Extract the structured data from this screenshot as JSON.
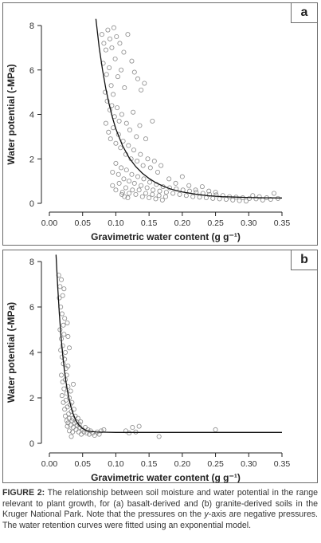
{
  "caption": {
    "label": "FIGURE 2:",
    "text_1": " The relationship between soil moisture and water potential in the range relevant to plant growth, for (a) basalt-derived and (b) granite-derived soils in the Kruger National Park. Note that the pressures on the ",
    "italic": "y",
    "text_2": "-axis are negative pressures. The water retention curves were fitted using an exponential model."
  },
  "chart_data": [
    {
      "panel": "a",
      "type": "scatter",
      "xlabel": "Gravimetric water content (g g⁻¹)",
      "ylabel": "Water potential (-MPa)",
      "xlim": [
        0.0,
        0.35
      ],
      "ylim": [
        0,
        8
      ],
      "xticks": [
        "0.00",
        "0.05",
        "0.10",
        "0.15",
        "0.20",
        "0.25",
        "0.30",
        "0.35"
      ],
      "yticks": [
        "0",
        "2",
        "4",
        "6",
        "8"
      ],
      "grid": false,
      "curve": [
        [
          0.07,
          8.3
        ],
        [
          0.075,
          7.0
        ],
        [
          0.08,
          6.0
        ],
        [
          0.085,
          5.15
        ],
        [
          0.09,
          4.45
        ],
        [
          0.095,
          3.85
        ],
        [
          0.1,
          3.35
        ],
        [
          0.11,
          2.6
        ],
        [
          0.12,
          2.05
        ],
        [
          0.13,
          1.65
        ],
        [
          0.14,
          1.35
        ],
        [
          0.15,
          1.12
        ],
        [
          0.16,
          0.93
        ],
        [
          0.17,
          0.79
        ],
        [
          0.18,
          0.67
        ],
        [
          0.19,
          0.58
        ],
        [
          0.2,
          0.51
        ],
        [
          0.22,
          0.41
        ],
        [
          0.24,
          0.34
        ],
        [
          0.26,
          0.3
        ],
        [
          0.28,
          0.28
        ],
        [
          0.3,
          0.26
        ],
        [
          0.32,
          0.25
        ],
        [
          0.35,
          0.24
        ]
      ],
      "points": [
        [
          0.079,
          7.6
        ],
        [
          0.082,
          7.2
        ],
        [
          0.085,
          6.9
        ],
        [
          0.088,
          7.8
        ],
        [
          0.091,
          7.4
        ],
        [
          0.094,
          7.0
        ],
        [
          0.097,
          7.9
        ],
        [
          0.101,
          7.5
        ],
        [
          0.106,
          7.2
        ],
        [
          0.112,
          6.8
        ],
        [
          0.118,
          7.6
        ],
        [
          0.124,
          6.4
        ],
        [
          0.128,
          5.9
        ],
        [
          0.133,
          5.6
        ],
        [
          0.138,
          5.1
        ],
        [
          0.143,
          5.4
        ],
        [
          0.081,
          6.3
        ],
        [
          0.086,
          5.8
        ],
        [
          0.09,
          6.1
        ],
        [
          0.093,
          5.3
        ],
        [
          0.096,
          4.9
        ],
        [
          0.099,
          6.5
        ],
        [
          0.103,
          5.7
        ],
        [
          0.108,
          6.0
        ],
        [
          0.113,
          5.2
        ],
        [
          0.084,
          5.0
        ],
        [
          0.087,
          4.6
        ],
        [
          0.091,
          4.2
        ],
        [
          0.094,
          4.4
        ],
        [
          0.098,
          3.9
        ],
        [
          0.102,
          4.3
        ],
        [
          0.105,
          3.7
        ],
        [
          0.109,
          4.0
        ],
        [
          0.116,
          3.6
        ],
        [
          0.121,
          3.3
        ],
        [
          0.126,
          4.1
        ],
        [
          0.131,
          3.0
        ],
        [
          0.136,
          3.5
        ],
        [
          0.155,
          3.7
        ],
        [
          0.145,
          2.9
        ],
        [
          0.085,
          3.6
        ],
        [
          0.089,
          3.2
        ],
        [
          0.092,
          2.9
        ],
        [
          0.096,
          3.4
        ],
        [
          0.1,
          2.7
        ],
        [
          0.104,
          3.1
        ],
        [
          0.107,
          2.5
        ],
        [
          0.111,
          2.8
        ],
        [
          0.115,
          2.2
        ],
        [
          0.119,
          2.6
        ],
        [
          0.123,
          2.0
        ],
        [
          0.127,
          2.4
        ],
        [
          0.132,
          1.9
        ],
        [
          0.137,
          2.2
        ],
        [
          0.141,
          1.7
        ],
        [
          0.148,
          2.0
        ],
        [
          0.152,
          1.6
        ],
        [
          0.158,
          1.9
        ],
        [
          0.163,
          1.4
        ],
        [
          0.168,
          1.7
        ],
        [
          0.095,
          1.4
        ],
        [
          0.1,
          1.8
        ],
        [
          0.104,
          1.3
        ],
        [
          0.108,
          1.6
        ],
        [
          0.112,
          1.1
        ],
        [
          0.116,
          1.5
        ],
        [
          0.12,
          1.0
        ],
        [
          0.124,
          1.3
        ],
        [
          0.128,
          0.9
        ],
        [
          0.133,
          1.2
        ],
        [
          0.138,
          0.8
        ],
        [
          0.142,
          1.1
        ],
        [
          0.147,
          0.7
        ],
        [
          0.151,
          0.95
        ],
        [
          0.156,
          0.6
        ],
        [
          0.161,
          0.85
        ],
        [
          0.166,
          0.55
        ],
        [
          0.171,
          0.75
        ],
        [
          0.176,
          0.5
        ],
        [
          0.181,
          0.7
        ],
        [
          0.186,
          0.45
        ],
        [
          0.191,
          0.65
        ],
        [
          0.196,
          0.4
        ],
        [
          0.201,
          0.6
        ],
        [
          0.206,
          0.35
        ],
        [
          0.211,
          0.55
        ],
        [
          0.216,
          0.3
        ],
        [
          0.221,
          0.5
        ],
        [
          0.226,
          0.28
        ],
        [
          0.231,
          0.45
        ],
        [
          0.236,
          0.25
        ],
        [
          0.241,
          0.4
        ],
        [
          0.246,
          0.22
        ],
        [
          0.251,
          0.38
        ],
        [
          0.256,
          0.2
        ],
        [
          0.261,
          0.35
        ],
        [
          0.266,
          0.18
        ],
        [
          0.271,
          0.3
        ],
        [
          0.276,
          0.15
        ],
        [
          0.281,
          0.28
        ],
        [
          0.286,
          0.12
        ],
        [
          0.291,
          0.25
        ],
        [
          0.296,
          0.1
        ],
        [
          0.301,
          0.22
        ],
        [
          0.306,
          0.35
        ],
        [
          0.311,
          0.2
        ],
        [
          0.316,
          0.3
        ],
        [
          0.321,
          0.15
        ],
        [
          0.327,
          0.25
        ],
        [
          0.333,
          0.18
        ],
        [
          0.338,
          0.45
        ],
        [
          0.344,
          0.22
        ],
        [
          0.18,
          1.1
        ],
        [
          0.19,
          0.9
        ],
        [
          0.2,
          1.2
        ],
        [
          0.21,
          0.8
        ],
        [
          0.22,
          0.6
        ],
        [
          0.23,
          0.75
        ],
        [
          0.24,
          0.55
        ],
        [
          0.25,
          0.5
        ],
        [
          0.13,
          0.4
        ],
        [
          0.135,
          0.6
        ],
        [
          0.14,
          0.3
        ],
        [
          0.145,
          0.45
        ],
        [
          0.15,
          0.25
        ],
        [
          0.155,
          0.4
        ],
        [
          0.16,
          0.2
        ],
        [
          0.165,
          0.35
        ],
        [
          0.17,
          0.15
        ],
        [
          0.175,
          0.3
        ],
        [
          0.11,
          0.5
        ],
        [
          0.115,
          0.7
        ],
        [
          0.12,
          0.45
        ],
        [
          0.125,
          0.6
        ],
        [
          0.095,
          0.8
        ],
        [
          0.1,
          0.6
        ],
        [
          0.105,
          0.9
        ],
        [
          0.109,
          0.4
        ],
        [
          0.113,
          0.3
        ],
        [
          0.118,
          0.25
        ]
      ]
    },
    {
      "panel": "b",
      "type": "scatter",
      "xlabel": "Gravimetric water content (g g⁻¹)",
      "ylabel": "Water potential (-MPa)",
      "xlim": [
        0.0,
        0.35
      ],
      "ylim": [
        0,
        8
      ],
      "xticks": [
        "0.00",
        "0.05",
        "0.10",
        "0.15",
        "0.20",
        "0.25",
        "0.30",
        "0.35"
      ],
      "yticks": [
        "0",
        "2",
        "4",
        "6",
        "8"
      ],
      "grid": false,
      "curve": [
        [
          0.01,
          8.3
        ],
        [
          0.0125,
          6.9
        ],
        [
          0.015,
          5.7
        ],
        [
          0.0175,
          4.7
        ],
        [
          0.02,
          3.9
        ],
        [
          0.0225,
          3.25
        ],
        [
          0.025,
          2.7
        ],
        [
          0.0275,
          2.25
        ],
        [
          0.03,
          1.9
        ],
        [
          0.0325,
          1.6
        ],
        [
          0.035,
          1.35
        ],
        [
          0.04,
          1.0
        ],
        [
          0.045,
          0.78
        ],
        [
          0.05,
          0.65
        ],
        [
          0.055,
          0.57
        ],
        [
          0.06,
          0.53
        ],
        [
          0.07,
          0.5
        ],
        [
          0.08,
          0.49
        ],
        [
          0.1,
          0.48
        ],
        [
          0.15,
          0.48
        ],
        [
          0.2,
          0.48
        ],
        [
          0.25,
          0.48
        ],
        [
          0.3,
          0.48
        ],
        [
          0.35,
          0.48
        ]
      ],
      "points": [
        [
          0.014,
          7.4
        ],
        [
          0.016,
          6.9
        ],
        [
          0.018,
          7.2
        ],
        [
          0.015,
          6.4
        ],
        [
          0.017,
          6.0
        ],
        [
          0.02,
          6.5
        ],
        [
          0.022,
          6.8
        ],
        [
          0.019,
          5.7
        ],
        [
          0.021,
          5.2
        ],
        [
          0.023,
          5.5
        ],
        [
          0.016,
          5.0
        ],
        [
          0.018,
          4.6
        ],
        [
          0.02,
          4.3
        ],
        [
          0.022,
          4.8
        ],
        [
          0.024,
          4.0
        ],
        [
          0.017,
          4.1
        ],
        [
          0.019,
          3.8
        ],
        [
          0.021,
          3.5
        ],
        [
          0.023,
          3.7
        ],
        [
          0.025,
          3.3
        ],
        [
          0.027,
          5.3
        ],
        [
          0.028,
          4.7
        ],
        [
          0.03,
          4.2
        ],
        [
          0.026,
          3.0
        ],
        [
          0.028,
          3.4
        ],
        [
          0.018,
          3.0
        ],
        [
          0.02,
          2.7
        ],
        [
          0.022,
          2.4
        ],
        [
          0.024,
          2.8
        ],
        [
          0.026,
          2.2
        ],
        [
          0.028,
          2.5
        ],
        [
          0.03,
          2.0
        ],
        [
          0.032,
          2.3
        ],
        [
          0.034,
          1.8
        ],
        [
          0.036,
          2.6
        ],
        [
          0.019,
          2.1
        ],
        [
          0.021,
          1.8
        ],
        [
          0.023,
          1.5
        ],
        [
          0.025,
          1.9
        ],
        [
          0.027,
          1.6
        ],
        [
          0.029,
          1.3
        ],
        [
          0.031,
          1.7
        ],
        [
          0.033,
          1.4
        ],
        [
          0.035,
          1.1
        ],
        [
          0.037,
          1.5
        ],
        [
          0.024,
          1.2
        ],
        [
          0.026,
          1.0
        ],
        [
          0.028,
          0.9
        ],
        [
          0.03,
          1.1
        ],
        [
          0.032,
          0.8
        ],
        [
          0.034,
          1.0
        ],
        [
          0.036,
          0.7
        ],
        [
          0.038,
          0.9
        ],
        [
          0.04,
          0.6
        ],
        [
          0.042,
          0.8
        ],
        [
          0.044,
          0.5
        ],
        [
          0.046,
          0.7
        ],
        [
          0.048,
          0.4
        ],
        [
          0.05,
          0.6
        ],
        [
          0.052,
          0.5
        ],
        [
          0.039,
          1.2
        ],
        [
          0.041,
          0.95
        ],
        [
          0.043,
          1.1
        ],
        [
          0.045,
          0.85
        ],
        [
          0.047,
          0.95
        ],
        [
          0.054,
          0.7
        ],
        [
          0.056,
          0.45
        ],
        [
          0.058,
          0.6
        ],
        [
          0.06,
          0.4
        ],
        [
          0.062,
          0.55
        ],
        [
          0.065,
          0.45
        ],
        [
          0.068,
          0.35
        ],
        [
          0.072,
          0.5
        ],
        [
          0.075,
          0.4
        ],
        [
          0.078,
          0.55
        ],
        [
          0.082,
          0.6
        ],
        [
          0.035,
          0.5
        ],
        [
          0.033,
          0.3
        ],
        [
          0.03,
          0.55
        ],
        [
          0.027,
          0.75
        ],
        [
          0.115,
          0.55
        ],
        [
          0.12,
          0.45
        ],
        [
          0.125,
          0.7
        ],
        [
          0.13,
          0.5
        ],
        [
          0.135,
          0.75
        ],
        [
          0.165,
          0.3
        ],
        [
          0.25,
          0.6
        ]
      ]
    }
  ]
}
